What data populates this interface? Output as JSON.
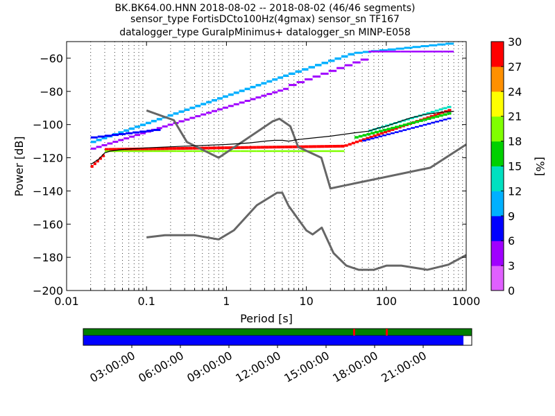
{
  "chart_data": [
    {
      "type": "heatmap",
      "title_lines": [
        "BK.BK64.00.HNN   2018-08-02 -- 2018-08-02  (46/46 segments)",
        "sensor_type FortisDCto100Hz(4gmax) sensor_sn TF167",
        "datalogger_type GuralpMinimus+ datalogger_sn MINP-E058"
      ],
      "xlabel": "Period [s]",
      "ylabel": "Power [dB]",
      "x_scale": "log",
      "xlim": [
        0.01,
        1000
      ],
      "ylim": [
        -200,
        -50
      ],
      "x_ticks": [
        0.01,
        0.1,
        1,
        10,
        100,
        1000
      ],
      "x_tick_labels": [
        "0.01",
        "0.1",
        "1",
        "10",
        "100",
        "1000"
      ],
      "y_ticks": [
        -200,
        -180,
        -160,
        -140,
        -120,
        -100,
        -80,
        -60
      ],
      "y_tick_labels": [
        "−200",
        "−180",
        "−160",
        "−140",
        "−120",
        "−100",
        "−80",
        "−60"
      ],
      "grid": "dotted vertical at decade subdivisions",
      "colorbar": {
        "label": "[%]",
        "range": [
          0,
          30
        ],
        "ticks": [
          0,
          3,
          6,
          9,
          12,
          15,
          18,
          21,
          24,
          27,
          30
        ],
        "tick_labels": [
          "0",
          "3",
          "6",
          "9",
          "12",
          "15",
          "18",
          "21",
          "24",
          "27",
          "30"
        ],
        "colors": [
          "#ffffff",
          "#e060ff",
          "#a000ff",
          "#0000ff",
          "#00b0ff",
          "#00e0c0",
          "#00d000",
          "#80ff00",
          "#ffff00",
          "#ff9000",
          "#ff0000"
        ]
      },
      "noise_models": [
        {
          "name": "new high noise model",
          "color": "#666666",
          "x": [
            0.1,
            0.22,
            0.32,
            0.8,
            3.8,
            4.6,
            6.3,
            7.9,
            15.4,
            20,
            354.8,
            1000
          ],
          "y": [
            -91.5,
            -97.4,
            -110.5,
            -120,
            -98,
            -96.5,
            -101,
            -113.5,
            -120,
            -138.5,
            -126,
            -112
          ]
        },
        {
          "name": "new low noise model",
          "color": "#666666",
          "x": [
            0.1,
            0.17,
            0.4,
            0.8,
            1.24,
            2.4,
            4.3,
            5,
            6,
            10,
            12,
            15.6,
            21.9,
            31.6,
            45,
            70,
            101,
            154,
            328,
            600,
            1000
          ],
          "y": [
            -168,
            -166.7,
            -166.7,
            -169.2,
            -163.7,
            -148.6,
            -141.1,
            -141.1,
            -149,
            -163.8,
            -166.2,
            -162.1,
            -177.5,
            -185,
            -187.5,
            -187.5,
            -185,
            -185,
            -187.5,
            -184.4,
            -178.6
          ]
        }
      ],
      "mean_curve": {
        "x": [
          0.02,
          0.025,
          0.03,
          0.035,
          0.05,
          0.1,
          0.3,
          1,
          2,
          3,
          4,
          5,
          6,
          8,
          10,
          20,
          40,
          60,
          80,
          100,
          150,
          200,
          300,
          500,
          700
        ],
        "y": [
          -124,
          -121,
          -117,
          -116,
          -115,
          -114,
          -113,
          -112,
          -111,
          -110,
          -109.5,
          -109.5,
          -110,
          -109,
          -108.5,
          -107,
          -105,
          -104,
          -102,
          -101,
          -98,
          -96,
          -94,
          -92.5,
          -92
        ]
      }
    },
    {
      "type": "timeline",
      "tick_labels": [
        "03:00:00",
        "06:00:00",
        "09:00:00",
        "12:00:00",
        "15:00:00",
        "18:00:00",
        "21:00:00"
      ],
      "colors": {
        "data_present": "#008000",
        "gap": "#ff0000",
        "coverage": "#0000ff"
      }
    }
  ]
}
